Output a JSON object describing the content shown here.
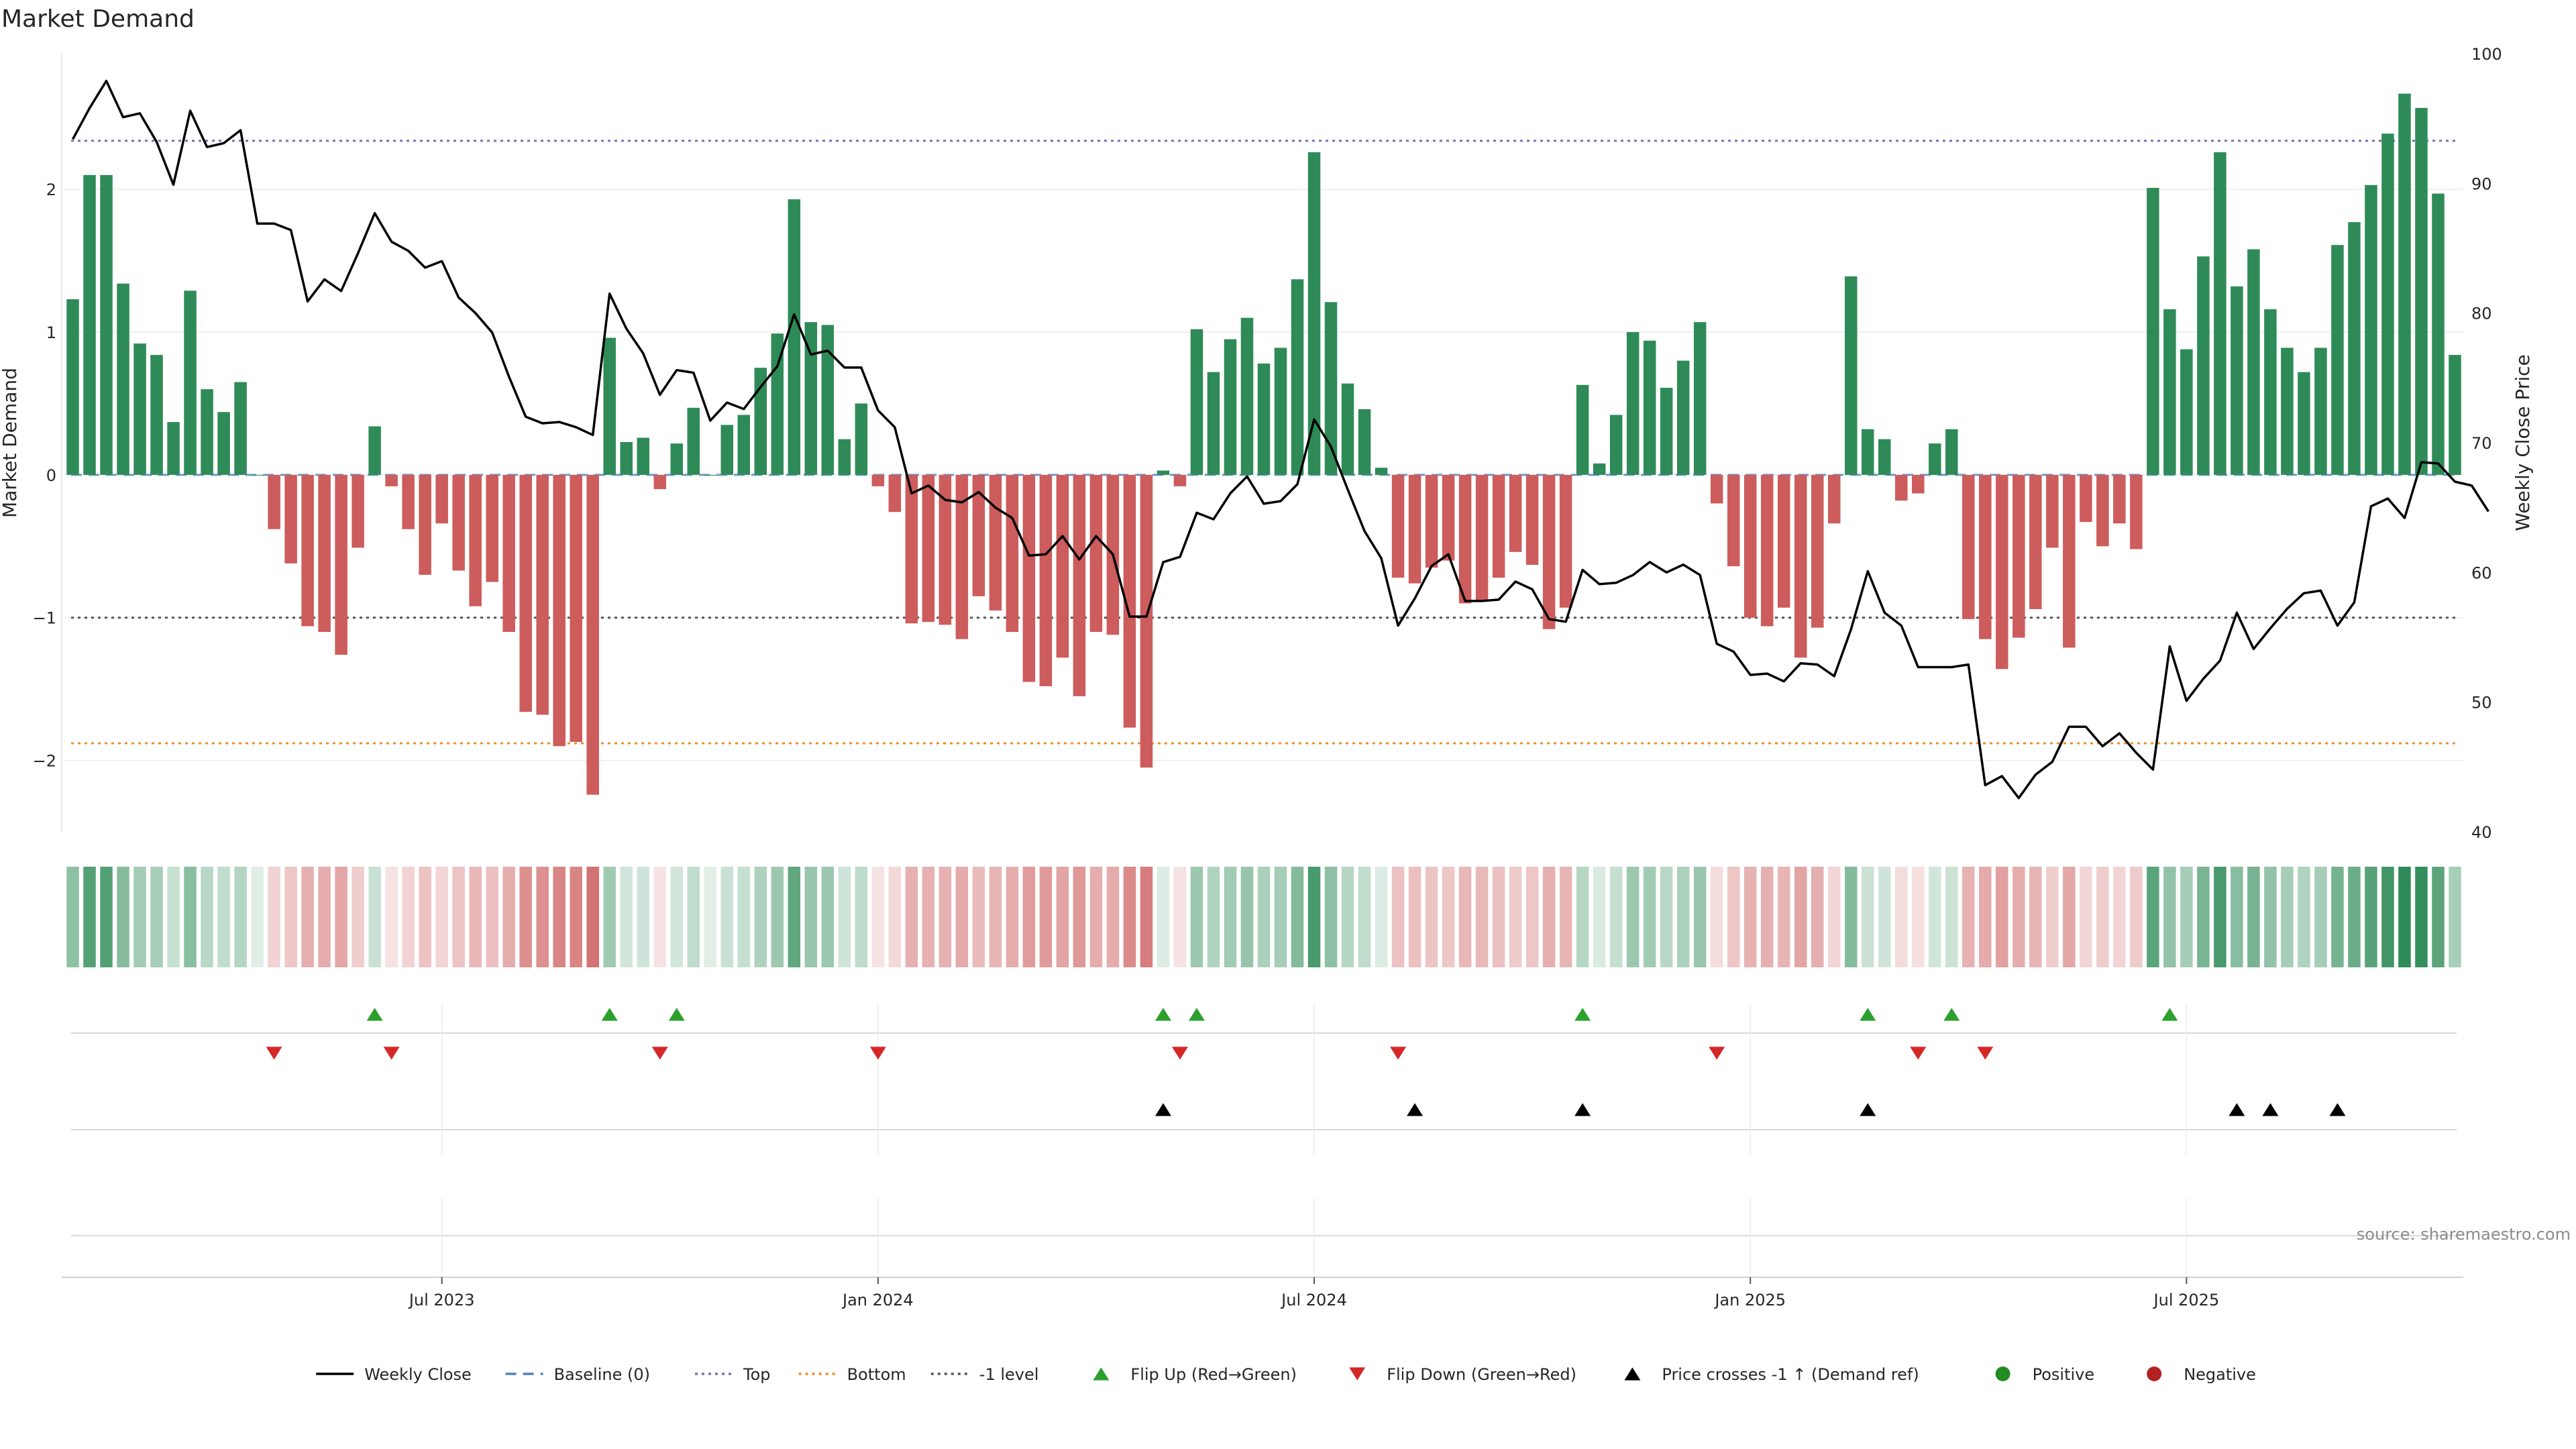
{
  "chart_data": {
    "type": "bar",
    "title": "Market Demand",
    "ylabel_left": "Market Demand",
    "ylabel_right": "Weekly Close Price",
    "ylim_left": [
      -2.5,
      2.95
    ],
    "ylim_right": [
      40,
      100
    ],
    "yticks_left": [
      2,
      1,
      0,
      -1,
      -2
    ],
    "yticks_left_labels": [
      "2",
      "1",
      "0",
      "−1",
      "−2"
    ],
    "yticks_right": [
      100,
      90,
      80,
      70,
      60,
      50,
      40
    ],
    "x_ticks": [
      {
        "label": "Jul 2023",
        "week": 22
      },
      {
        "label": "Jan 2024",
        "week": 48
      },
      {
        "label": "Jul 2024",
        "week": 74
      },
      {
        "label": "Jan 2025",
        "week": 100
      },
      {
        "label": "Jul 2025",
        "week": 126
      }
    ],
    "reference_lines": {
      "top": 2.34,
      "bottom": -1.88,
      "minus_one": -1.0,
      "baseline": 0
    },
    "demand": [
      1.23,
      2.1,
      2.1,
      1.34,
      0.92,
      0.84,
      0.37,
      1.29,
      0.6,
      0.44,
      0.65,
      0.0,
      -0.38,
      -0.62,
      -1.06,
      -1.1,
      -1.26,
      -0.51,
      0.34,
      -0.08,
      -0.38,
      -0.7,
      -0.34,
      -0.67,
      -0.92,
      -0.75,
      -1.1,
      -1.66,
      -1.68,
      -1.9,
      -1.87,
      -2.24,
      0.96,
      0.23,
      0.26,
      -0.1,
      0.22,
      0.47,
      0.0,
      0.35,
      0.42,
      0.75,
      0.99,
      1.93,
      1.07,
      1.05,
      0.25,
      0.5,
      -0.08,
      -0.26,
      -1.04,
      -1.03,
      -1.05,
      -1.15,
      -0.85,
      -0.95,
      -1.1,
      -1.45,
      -1.48,
      -1.28,
      -1.55,
      -1.1,
      -1.12,
      -1.77,
      -2.05,
      0.03,
      -0.08,
      1.02,
      0.72,
      0.95,
      1.1,
      0.78,
      0.89,
      1.37,
      2.26,
      1.21,
      0.64,
      0.46,
      0.05,
      -0.72,
      -0.76,
      -0.65,
      -0.6,
      -0.9,
      -0.88,
      -0.72,
      -0.54,
      -0.63,
      -1.08,
      -0.93,
      0.63,
      0.08,
      0.42,
      1.0,
      0.94,
      0.61,
      0.8,
      1.07,
      -0.2,
      -0.64,
      -1.0,
      -1.06,
      -0.93,
      -1.28,
      -1.07,
      -0.34,
      1.39,
      0.32,
      0.25,
      -0.18,
      -0.13,
      0.22,
      0.32,
      -1.01,
      -1.15,
      -1.36,
      -1.14,
      -0.94,
      -0.51,
      -1.21,
      -0.33,
      -0.5,
      -0.34,
      -0.52,
      2.01,
      1.16,
      0.88,
      1.53,
      2.26,
      1.32,
      1.58,
      1.16,
      0.89,
      0.72,
      0.89,
      1.61,
      1.77,
      2.03,
      2.39,
      2.67,
      2.57,
      1.97,
      0.84
    ],
    "weekly_close": [
      93.4,
      95.8,
      97.9,
      95.1,
      95.4,
      93.2,
      89.9,
      95.6,
      92.8,
      93.1,
      94.1,
      86.9,
      86.9,
      86.4,
      80.9,
      82.6,
      81.7,
      84.6,
      87.7,
      85.5,
      84.8,
      83.5,
      84.0,
      81.2,
      80.0,
      78.5,
      75.1,
      72.0,
      71.5,
      71.6,
      71.2,
      70.6,
      81.5,
      78.8,
      76.9,
      73.7,
      75.6,
      75.4,
      71.7,
      73.1,
      72.6,
      74.3,
      75.9,
      79.9,
      76.8,
      77.1,
      75.8,
      75.8,
      72.5,
      71.2,
      66.1,
      66.7,
      65.6,
      65.4,
      66.2,
      65.0,
      64.2,
      61.3,
      61.4,
      62.8,
      61.0,
      62.8,
      61.4,
      56.6,
      56.6,
      60.8,
      61.2,
      64.6,
      64.1,
      66.1,
      67.4,
      65.3,
      65.5,
      66.8,
      71.8,
      69.7,
      66.4,
      63.2,
      61.1,
      55.9,
      58.0,
      60.5,
      61.4,
      57.8,
      57.8,
      57.9,
      59.3,
      58.7,
      56.4,
      56.2,
      60.2,
      59.1,
      59.2,
      59.8,
      60.8,
      60.0,
      60.6,
      59.8,
      54.5,
      53.9,
      52.1,
      52.2,
      51.6,
      53.0,
      52.9,
      52.0,
      55.6,
      60.1,
      56.9,
      55.9,
      52.7,
      52.7,
      52.7,
      52.9,
      43.6,
      44.3,
      42.6,
      44.4,
      45.4,
      48.1,
      48.1,
      46.6,
      47.6,
      46.1,
      44.8,
      54.3,
      50.1,
      51.8,
      53.2,
      56.9,
      54.1,
      55.7,
      57.2,
      58.4,
      58.6,
      55.9,
      57.7,
      65.1,
      65.7,
      64.2,
      68.5,
      68.4,
      67.0,
      66.7,
      64.7
    ],
    "flip_up_weeks": [
      18,
      32,
      36,
      65,
      67,
      90,
      107,
      112,
      125
    ],
    "flip_down_weeks": [
      12,
      19,
      35,
      48,
      66,
      79,
      98,
      110,
      114
    ],
    "price_cross_weeks": [
      65,
      80,
      90,
      107,
      129,
      131,
      135
    ],
    "heat_strip": {
      "positive_color": "#2e8b57",
      "negative_color": "#cd5c5c"
    },
    "legend": [
      {
        "label": "Weekly Close",
        "kind": "line-solid",
        "color": "#000000"
      },
      {
        "label": "Baseline (0)",
        "kind": "line-dash",
        "color": "#4f81bd"
      },
      {
        "label": "Top",
        "kind": "line-dot",
        "color": "#7b6fb0"
      },
      {
        "label": "Bottom",
        "kind": "line-dot",
        "color": "#e8902b"
      },
      {
        "label": "-1 level",
        "kind": "line-dot",
        "color": "#555555"
      },
      {
        "label": "Flip Up (Red→Green)",
        "kind": "triangle-up",
        "color": "#2ca02c"
      },
      {
        "label": "Flip Down (Green→Red)",
        "kind": "triangle-down",
        "color": "#d62728"
      },
      {
        "label": "Price crosses -1 ↑ (Demand ref)",
        "kind": "triangle-up",
        "color": "#000000"
      },
      {
        "label": "Positive",
        "kind": "circle",
        "color": "#228b22"
      },
      {
        "label": "Negative",
        "kind": "circle",
        "color": "#b22222"
      }
    ],
    "source": "source: sharemaestro.com"
  },
  "colors": {
    "bar_positive": "#2e8b57",
    "bar_negative": "#cd5c5c",
    "top_line": "#7b6fb0",
    "bottom_line": "#e8902b",
    "minus_one_line": "#555555",
    "baseline": "#4f81bd",
    "close_line": "#000000",
    "flip_up": "#2ca02c",
    "flip_down": "#d62728",
    "price_cross": "#000000"
  }
}
